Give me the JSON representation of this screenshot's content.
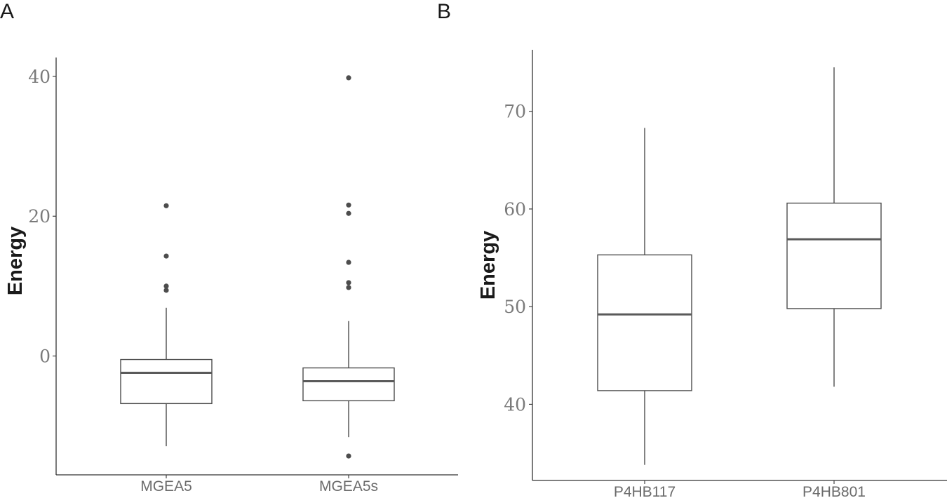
{
  "chart_data": [
    {
      "type": "box",
      "panel_label": "A",
      "ylabel": "Energy",
      "xlabel": "",
      "ylim": [
        -17,
        42.7
      ],
      "yticks": [
        0,
        20,
        40
      ],
      "ytick_labels": [
        "0",
        "20",
        "40"
      ],
      "grid": false,
      "categories": [
        "MGEA5",
        "MGEA5s"
      ],
      "boxes": [
        {
          "category": "MGEA5",
          "whisker_low": -12.9,
          "q1": -6.8,
          "median": -2.4,
          "q3": -0.5,
          "whisker_high": 6.9,
          "outliers": [
            21.5,
            14.3,
            10.0,
            9.4
          ]
        },
        {
          "category": "MGEA5s",
          "whisker_low": -11.6,
          "q1": -6.4,
          "median": -3.6,
          "q3": -1.7,
          "whisker_high": 5.0,
          "outliers": [
            39.8,
            21.6,
            20.4,
            13.4,
            10.5,
            9.8,
            -14.3
          ]
        }
      ]
    },
    {
      "type": "box",
      "panel_label": "B",
      "ylabel": "Energy",
      "xlabel": "",
      "ylim": [
        32.2,
        76.3
      ],
      "yticks": [
        40,
        50,
        60,
        70
      ],
      "ytick_labels": [
        "40",
        "50",
        "60",
        "70"
      ],
      "grid": false,
      "categories": [
        "P4HB117",
        "P4HB801"
      ],
      "boxes": [
        {
          "category": "P4HB117",
          "whisker_low": 33.8,
          "q1": 41.4,
          "median": 49.2,
          "q3": 55.3,
          "whisker_high": 68.3,
          "outliers": []
        },
        {
          "category": "P4HB801",
          "whisker_low": 41.8,
          "q1": 49.8,
          "median": 56.9,
          "q3": 60.6,
          "whisker_high": 74.5,
          "outliers": []
        }
      ]
    }
  ]
}
